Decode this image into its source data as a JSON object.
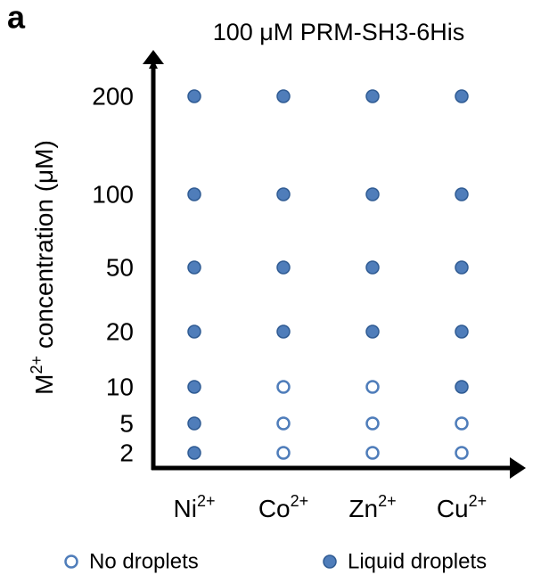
{
  "panel_label": "a",
  "chart_data": {
    "type": "scatter",
    "title": "100 μM PRM-SH3-6His",
    "ylabel": {
      "base": "M",
      "sup": "2+",
      "rest": " concentration (μM)"
    },
    "categories": [
      {
        "base": "Ni",
        "sup": "2+"
      },
      {
        "base": "Co",
        "sup": "2+"
      },
      {
        "base": "Zn",
        "sup": "2+"
      },
      {
        "base": "Cu",
        "sup": "2+"
      }
    ],
    "yticks": [
      2,
      5,
      10,
      20,
      50,
      100,
      200
    ],
    "series": [
      {
        "name": "No droplets",
        "marker": "open",
        "color": "#4f7dba",
        "x": [
          "Co",
          "Co",
          "Co",
          "Zn",
          "Zn",
          "Zn",
          "Cu",
          "Cu"
        ],
        "y": [
          2,
          5,
          10,
          2,
          5,
          10,
          2,
          5
        ]
      },
      {
        "name": "Liquid droplets",
        "marker": "filled",
        "color": "#4f7dba",
        "x": [
          "Ni",
          "Ni",
          "Ni",
          "Ni",
          "Ni",
          "Ni",
          "Ni",
          "Co",
          "Co",
          "Co",
          "Co",
          "Zn",
          "Zn",
          "Zn",
          "Zn",
          "Cu",
          "Cu",
          "Cu",
          "Cu",
          "Cu"
        ],
        "y": [
          2,
          5,
          10,
          20,
          50,
          100,
          200,
          20,
          50,
          100,
          200,
          20,
          50,
          100,
          200,
          10,
          20,
          50,
          100,
          200
        ]
      }
    ]
  }
}
